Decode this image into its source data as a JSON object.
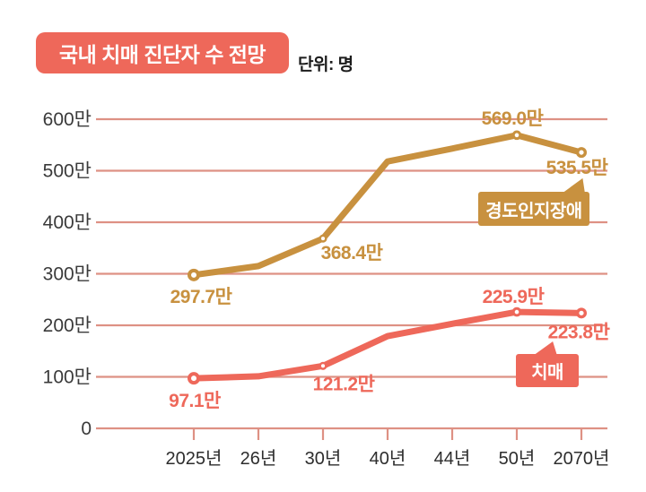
{
  "header": {
    "title": "국내 치매 진단자 수 전망",
    "unit_label": "단위: 명"
  },
  "colors": {
    "accent_red": "#ee685a",
    "accent_gold": "#c8913f",
    "gridline": "#de9184",
    "y_axis_text": "#3a3a3a",
    "x_axis_text": "#2d2d2d",
    "title_text": "#ffffff",
    "background": "#ffffff"
  },
  "chart_data": {
    "type": "line",
    "title": "국내 치매 진단자 수 전망",
    "unit": "명",
    "categories": [
      "2025년",
      "26년",
      "30년",
      "40년",
      "44년",
      "50년",
      "2070년"
    ],
    "y_axis": {
      "tick_labels": [
        "600만",
        "500만",
        "400만",
        "300만",
        "200만",
        "100만",
        "0"
      ],
      "range_man": [
        0,
        600
      ],
      "grid": true
    },
    "series": [
      {
        "key": "mci",
        "name": "경도인지장애",
        "color": "#c8913f",
        "values_man": [
          297.7,
          315,
          368.4,
          518,
          543,
          569.0,
          535.5
        ],
        "labeled_points": [
          {
            "index": 0,
            "label": "297.7만"
          },
          {
            "index": 2,
            "label": "368.4만"
          },
          {
            "index": 5,
            "label": "569.0만"
          },
          {
            "index": 6,
            "label": "535.5만"
          }
        ]
      },
      {
        "key": "dementia",
        "name": "치매",
        "color": "#ee685a",
        "values_man": [
          97.1,
          101,
          121.2,
          179,
          203,
          225.9,
          223.8
        ],
        "labeled_points": [
          {
            "index": 0,
            "label": "97.1만"
          },
          {
            "index": 2,
            "label": "121.2만"
          },
          {
            "index": 5,
            "label": "225.9만"
          },
          {
            "index": 6,
            "label": "223.8만"
          }
        ]
      }
    ],
    "legend": {
      "style": "callout-boxes",
      "entries": [
        "경도인지장애",
        "치매"
      ]
    }
  }
}
